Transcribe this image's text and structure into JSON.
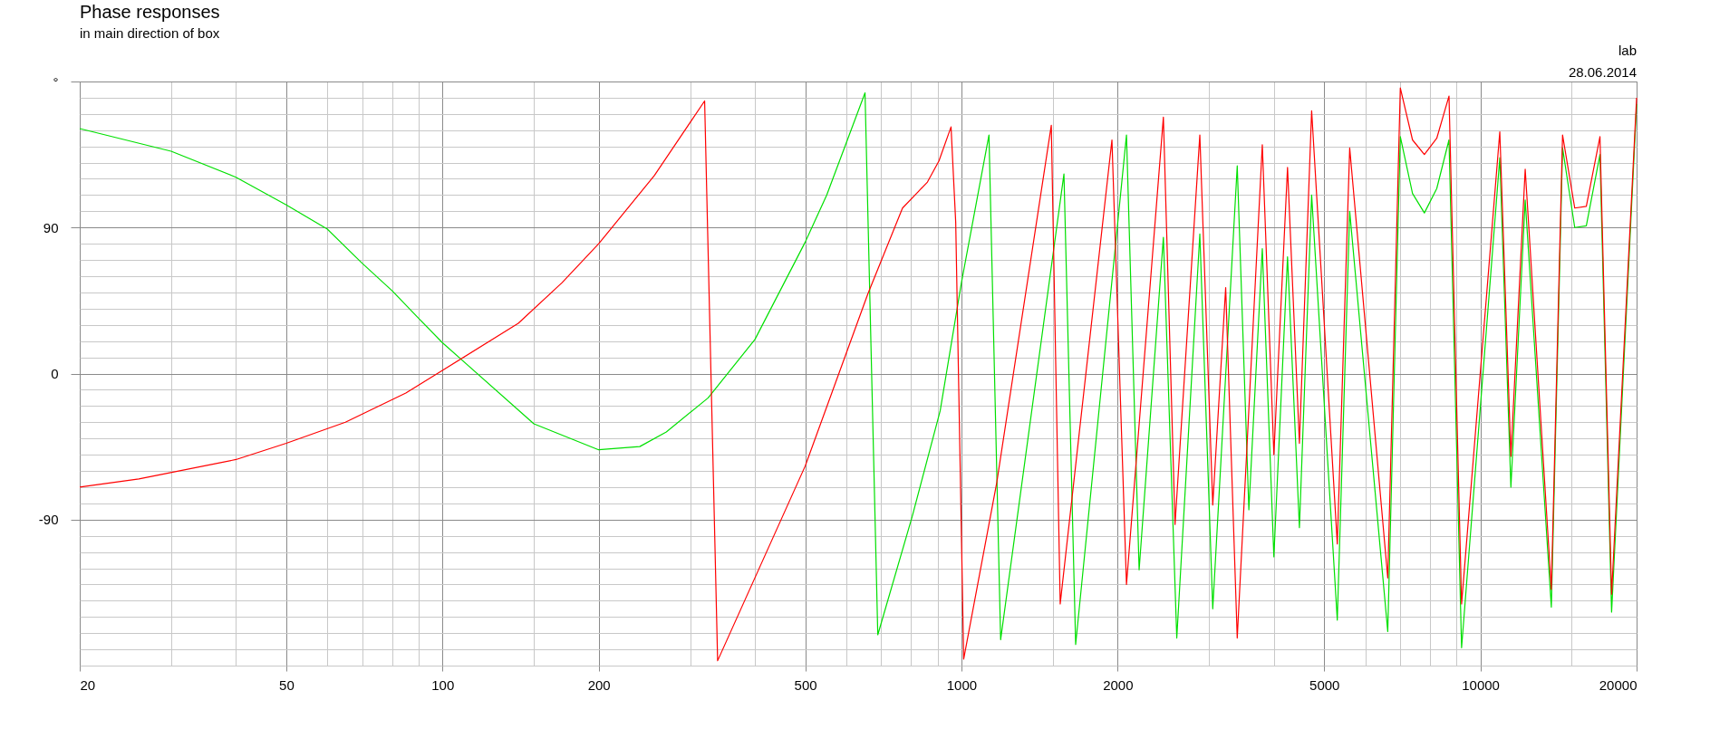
{
  "chart_data": {
    "type": "line",
    "title": "Phase responses",
    "subtitle": "in main direction of box",
    "annotations": [
      "lab",
      "28.06.2014"
    ],
    "log": "x",
    "grid": true,
    "xlim": [
      20,
      20000
    ],
    "ylim": [
      -180,
      180
    ],
    "xticks": [
      20,
      {
        "value": 30,
        "label": null
      },
      {
        "value": 40,
        "label": null
      },
      50,
      {
        "value": 60,
        "label": null
      },
      {
        "value": 70,
        "label": null
      },
      {
        "value": 80,
        "label": null
      },
      {
        "value": 90,
        "label": null
      },
      100,
      {
        "value": 150,
        "label": null
      },
      200,
      {
        "value": 300,
        "label": null
      },
      {
        "value": 400,
        "label": null
      },
      500,
      {
        "value": 600,
        "label": null
      },
      {
        "value": 700,
        "label": null
      },
      {
        "value": 800,
        "label": null
      },
      {
        "value": 900,
        "label": null
      },
      1000,
      {
        "value": 1500,
        "label": null
      },
      2000,
      {
        "value": 3000,
        "label": null
      },
      {
        "value": 4000,
        "label": null
      },
      5000,
      {
        "value": 6000,
        "label": null
      },
      {
        "value": 7000,
        "label": null
      },
      {
        "value": 8000,
        "label": null
      },
      {
        "value": 9000,
        "label": null
      },
      10000,
      {
        "value": 15000,
        "label": null
      },
      20000
    ],
    "yticks": [
      {
        "value": -180,
        "label": null
      },
      {
        "value": -170,
        "label": null
      },
      {
        "value": -160,
        "label": null
      },
      {
        "value": -150,
        "label": null
      },
      {
        "value": -140,
        "label": null
      },
      {
        "value": -130,
        "label": null
      },
      {
        "value": -120,
        "label": null
      },
      {
        "value": -110,
        "label": null
      },
      {
        "value": -100,
        "label": null
      },
      -90,
      {
        "value": -80,
        "label": null
      },
      {
        "value": -70,
        "label": null
      },
      {
        "value": -60,
        "label": null
      },
      {
        "value": -50,
        "label": null
      },
      {
        "value": -40,
        "label": null
      },
      {
        "value": -30,
        "label": null
      },
      {
        "value": -20,
        "label": null
      },
      {
        "value": -10,
        "label": null
      },
      0,
      {
        "value": 10,
        "label": null
      },
      {
        "value": 20,
        "label": null
      },
      {
        "value": 30,
        "label": null
      },
      {
        "value": 40,
        "label": null
      },
      {
        "value": 50,
        "label": null
      },
      {
        "value": 60,
        "label": null
      },
      {
        "value": 70,
        "label": null
      },
      {
        "value": 80,
        "label": null
      },
      90,
      {
        "value": 100,
        "label": null
      },
      {
        "value": 110,
        "label": null
      },
      {
        "value": 120,
        "label": null
      },
      {
        "value": 130,
        "label": null
      },
      {
        "value": 140,
        "label": null
      },
      {
        "value": 150,
        "label": null
      },
      {
        "value": 160,
        "label": null
      },
      {
        "value": 170,
        "label": null
      },
      {
        "value": 180,
        "label": "°"
      }
    ],
    "series": [
      {
        "color": "#00e000",
        "x": [
          20,
          30,
          40,
          50,
          60,
          70,
          80,
          90,
          100,
          150,
          200,
          240,
          270,
          325,
          400,
          500,
          550,
          652,
          690,
          804,
          910,
          1000,
          1130,
          1190,
          1576,
          1660,
          2080,
          2200,
          2450,
          2600,
          2880,
          3050,
          3400,
          3580,
          3800,
          4000,
          4250,
          4480,
          4730,
          5300,
          5600,
          6630,
          7010,
          7400,
          7800,
          8240,
          8700,
          9200,
          10900,
          11450,
          12200,
          13700,
          14400,
          15200,
          16000,
          17000,
          17900,
          20000
        ],
        "values": [
          151,
          137,
          121,
          104,
          89,
          68,
          51,
          34,
          19,
          -31,
          -47,
          -45,
          -36,
          -15,
          21,
          81,
          110,
          173,
          -161,
          -88,
          -23,
          56,
          147,
          -164,
          123,
          -167,
          147,
          -121,
          84,
          -163,
          86,
          -145,
          128,
          -84,
          77,
          -113,
          72,
          -95,
          110,
          -152,
          100,
          -159,
          146,
          111,
          99,
          114,
          144,
          -169,
          133,
          -70,
          107,
          -144,
          139,
          90,
          91,
          135,
          -147,
          166
        ]
      },
      {
        "color": "#ff0000",
        "x": [
          20,
          26,
          40,
          50,
          65,
          85,
          100,
          140,
          170,
          200,
          256,
          320,
          339,
          500,
          660,
          770,
          825,
          860,
          905,
          955,
          975,
          1010,
          1170,
          1490,
          1550,
          1950,
          2080,
          2450,
          2580,
          2880,
          3050,
          3230,
          3400,
          3800,
          4000,
          4250,
          4480,
          4730,
          5300,
          5600,
          6630,
          7010,
          7400,
          7800,
          8240,
          8700,
          9200,
          10900,
          11450,
          12200,
          13700,
          14400,
          15200,
          16000,
          17000,
          17900,
          20000
        ],
        "values": [
          -70,
          -65,
          -53,
          -43,
          -30,
          -12,
          2,
          31,
          56,
          80,
          122,
          168,
          -177,
          -57,
          49,
          102,
          112,
          118,
          131,
          152,
          93,
          -176,
          -67,
          153,
          -142,
          144,
          -130,
          158,
          -93,
          147,
          -81,
          53,
          -163,
          141,
          -50,
          127,
          -43,
          162,
          -105,
          139,
          -126,
          176,
          144,
          135,
          145,
          171,
          -142,
          149,
          -51,
          126,
          -133,
          147,
          102,
          103,
          146,
          -136,
          170
        ]
      }
    ]
  }
}
